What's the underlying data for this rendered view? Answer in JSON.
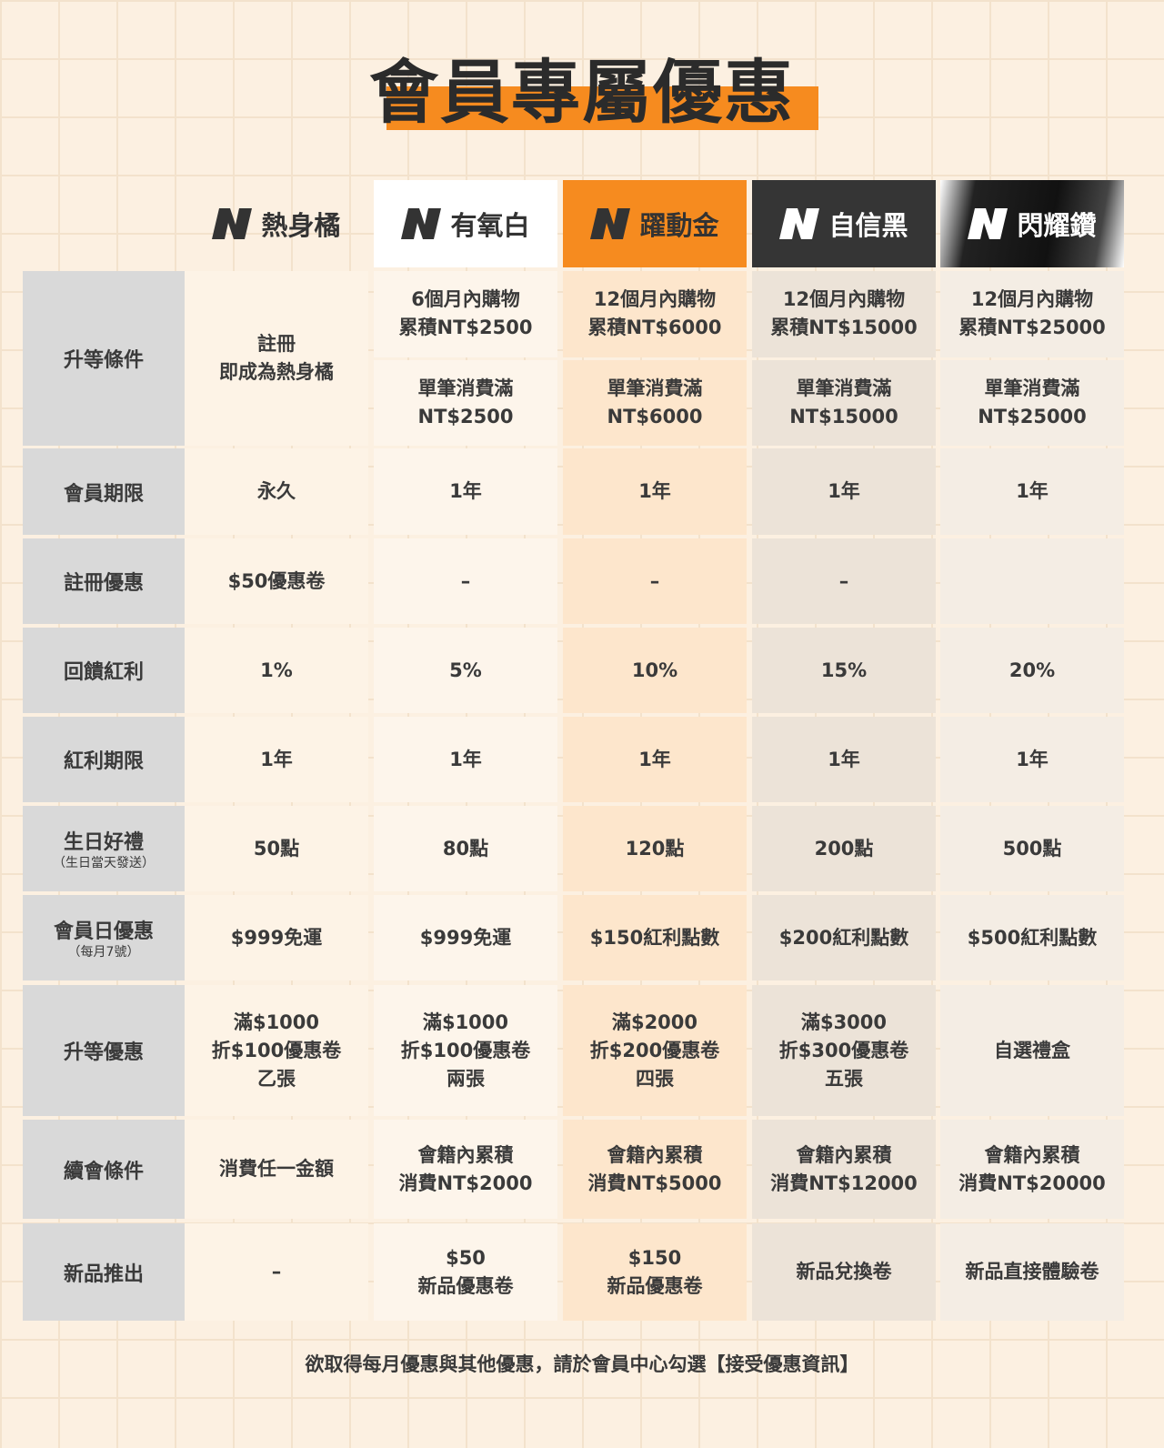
{
  "title": "會員專屬優惠",
  "tiers": [
    "熱身橘",
    "有氧白",
    "躍動金",
    "自信黑",
    "閃耀鑽"
  ],
  "rows": [
    {
      "label": "升等條件",
      "cells": [
        "註冊\n即成為熱身橘",
        [
          "6個月內購物\n累積NT$2500",
          "單筆消費滿\nNT$2500"
        ],
        [
          "12個月內購物\n累積NT$6000",
          "單筆消費滿\nNT$6000"
        ],
        [
          "12個月內購物\n累積NT$15000",
          "單筆消費滿\nNT$15000"
        ],
        [
          "12個月內購物\n累積NT$25000",
          "單筆消費滿\nNT$25000"
        ]
      ]
    },
    {
      "label": "會員期限",
      "cells": [
        "永久",
        "1年",
        "1年",
        "1年",
        "1年"
      ]
    },
    {
      "label": "註冊優惠",
      "cells": [
        "$50優惠卷",
        "–",
        "–",
        "–",
        null
      ]
    },
    {
      "label": "回饋紅利",
      "cells": [
        "1%",
        "5%",
        "10%",
        "15%",
        "20%"
      ]
    },
    {
      "label": "紅利期限",
      "cells": [
        "1年",
        "1年",
        "1年",
        "1年",
        "1年"
      ]
    },
    {
      "label": "生日好禮",
      "sublabel": "（生日當天發送）",
      "cells": [
        "50點",
        "80點",
        "120點",
        "200點",
        "500點"
      ]
    },
    {
      "label": "會員日優惠",
      "sublabel": "（每月7號）",
      "cells": [
        "$999免運",
        "$999免運",
        "$150紅利點數",
        "$200紅利點數",
        "$500紅利點數"
      ]
    },
    {
      "label": "升等優惠",
      "cells": [
        "滿$1000\n折$100優惠卷\n乙張",
        "滿$1000\n折$100優惠卷\n兩張",
        "滿$2000\n折$200優惠卷\n四張",
        "滿$3000\n折$300優惠卷\n五張",
        "自選禮盒"
      ]
    },
    {
      "label": "續會條件",
      "cells": [
        "消費任一金額",
        "會籍內累積\n消費NT$2000",
        "會籍內累積\n消費NT$5000",
        "會籍內累積\n消費NT$12000",
        "會籍內累積\n消費NT$20000"
      ]
    },
    {
      "label": "新品推出",
      "cells": [
        "–",
        "$50\n新品優惠卷",
        "$150\n新品優惠卷",
        "新品兌換卷",
        "新品直接體驗卷"
      ]
    }
  ],
  "footer": "欲取得每月優惠與其他優惠，請於會員中心勾選【接受優惠資訊】"
}
